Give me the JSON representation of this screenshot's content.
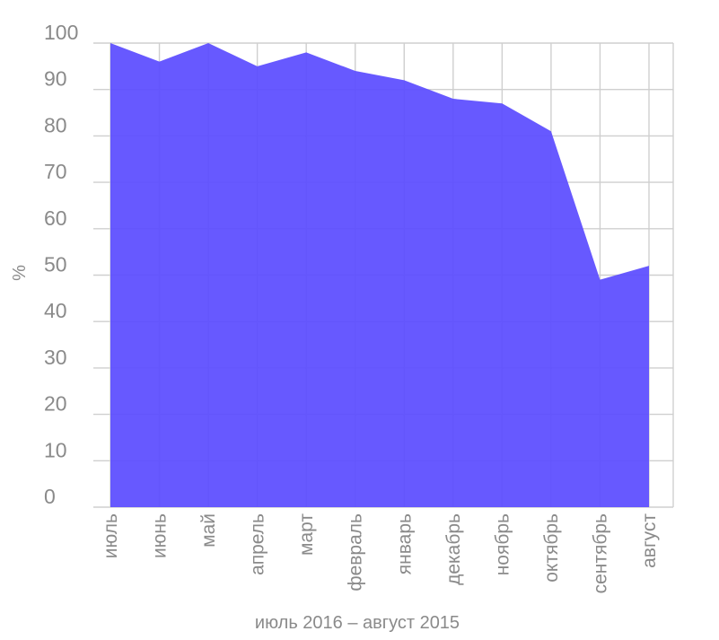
{
  "chart_data": {
    "type": "area",
    "categories": [
      "июль",
      "июнь",
      "май",
      "апрель",
      "март",
      "февраль",
      "январь",
      "декабрь",
      "ноябрь",
      "октябрь",
      "сентябрь",
      "август"
    ],
    "series": [
      {
        "values": [
          100,
          96,
          100,
          95,
          98,
          94,
          92,
          88,
          87,
          81,
          49,
          52
        ],
        "color": "#5b4cff"
      }
    ],
    "xlabel": "июль 2016 – август 2015",
    "ylabel": "%",
    "ylim": [
      0,
      100
    ],
    "yticks": [
      0,
      10,
      20,
      30,
      40,
      50,
      60,
      70,
      80,
      90,
      100
    ],
    "grid": true
  }
}
